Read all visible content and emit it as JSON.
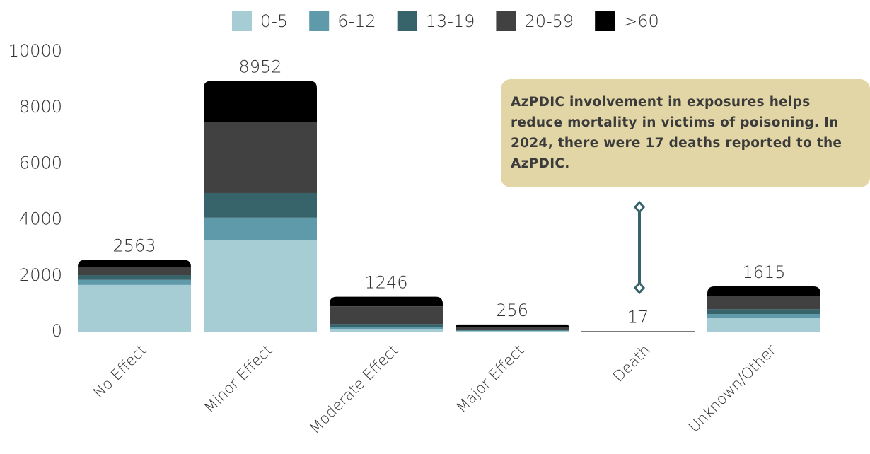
{
  "chart_data": {
    "type": "stacked_bar",
    "categories": [
      "No Effect",
      "Minor Effect",
      "Moderate Effect",
      "Major Effect",
      "Death",
      "Unknown/Other"
    ],
    "series": [
      {
        "name": "0-5",
        "color": "#a5cdd3",
        "values": [
          1670,
          3260,
          100,
          20,
          1,
          480
        ]
      },
      {
        "name": "6-12",
        "color": "#5e9aa9",
        "values": [
          180,
          810,
          75,
          20,
          1,
          150
        ]
      },
      {
        "name": "13-19",
        "color": "#37636b",
        "values": [
          170,
          880,
          100,
          36,
          2,
          175
        ]
      },
      {
        "name": "20-59",
        "color": "#414141",
        "values": [
          280,
          2550,
          630,
          100,
          8,
          480
        ]
      },
      {
        "name": ">60",
        "color": "#000000",
        "values": [
          263,
          1452,
          341,
          80,
          5,
          330
        ]
      }
    ],
    "totals": [
      2563,
      8952,
      1246,
      256,
      17,
      1615
    ],
    "ylim": [
      0,
      10000
    ],
    "yticks": [
      0,
      2000,
      4000,
      6000,
      8000,
      10000
    ],
    "grid": false,
    "legend": "top",
    "annotation": "AzPDIC involvement in exposures helps reduce mortality in victims of poisoning. In 2024, there were 17 deaths reported to the AzPDIC."
  }
}
